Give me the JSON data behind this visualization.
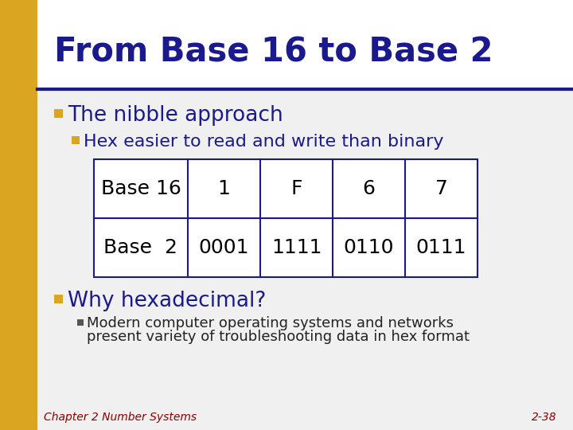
{
  "title": "From Base 16 to Base 2",
  "title_color": "#1a1a8c",
  "title_fontsize": 30,
  "header_bar_color": "#1a1a8c",
  "left_bar_color": "#DAA520",
  "bullet1": "The nibble approach",
  "bullet1_color": "#1a1a8c",
  "bullet1_fontsize": 19,
  "bullet1_marker_color": "#DAA520",
  "bullet2": "Hex easier to read and write than binary",
  "bullet2_color": "#1a1a8c",
  "bullet2_fontsize": 16,
  "bullet2_marker_color": "#DAA520",
  "table_row1": [
    "Base 16",
    "1",
    "F",
    "6",
    "7"
  ],
  "table_row2": [
    "Base  2",
    "0001",
    "1111",
    "0110",
    "0111"
  ],
  "table_border_color": "#1a1a8c",
  "table_fontsize": 18,
  "table_text_color": "#000000",
  "bullet3": "Why hexadecimal?",
  "bullet3_color": "#1a1a8c",
  "bullet3_fontsize": 19,
  "bullet3_marker_color": "#DAA520",
  "sub_bullet_text1": "Modern computer operating systems and networks",
  "sub_bullet_text2": "present variety of troubleshooting data in hex format",
  "sub_bullet_color": "#222222",
  "sub_bullet_fontsize": 13,
  "sub_bullet_marker_color": "#555555",
  "footer_left": "Chapter 2 Number Systems",
  "footer_right": "2-38",
  "footer_color": "#8B0000",
  "footer_fontsize": 10
}
